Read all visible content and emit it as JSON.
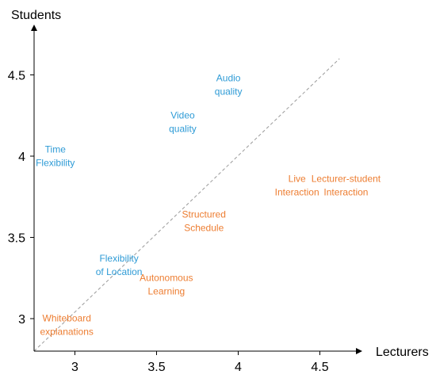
{
  "chart_data": {
    "type": "scatter",
    "title": "",
    "xlabel": "Lecturers",
    "ylabel": "Students",
    "xlim": [
      2.75,
      4.75
    ],
    "ylim": [
      2.8,
      4.8
    ],
    "x_ticks": [
      "3",
      "3.5",
      "4",
      "4.5"
    ],
    "y_ticks": [
      "3",
      "3.5",
      "4",
      "4.5"
    ],
    "grid": false,
    "reference_line": {
      "style": "dashed",
      "from": [
        2.75,
        2.8
      ],
      "from_label": "",
      "to": [
        4.62,
        4.6
      ]
    },
    "colors": {
      "blue": "#2e9bd6",
      "orange": "#ed7d31"
    },
    "points": [
      {
        "name": "Audio quality",
        "lines": [
          "Audio",
          "quality"
        ],
        "x": 3.94,
        "y": 4.44,
        "color": "#2e9bd6"
      },
      {
        "name": "Video quality",
        "lines": [
          "Video",
          "quality"
        ],
        "x": 3.66,
        "y": 4.21,
        "color": "#2e9bd6"
      },
      {
        "name": "Time Flexibility",
        "lines": [
          "Time",
          "Flexibility"
        ],
        "x": 2.88,
        "y": 4.0,
        "color": "#2e9bd6"
      },
      {
        "name": "Flexibility of Location",
        "lines": [
          "Flexibility",
          "of Location"
        ],
        "x": 3.27,
        "y": 3.33,
        "color": "#2e9bd6"
      },
      {
        "name": "Live Interaction",
        "lines": [
          "Live",
          "Interaction"
        ],
        "x": 4.36,
        "y": 3.82,
        "color": "#ed7d31"
      },
      {
        "name": "Lecturer-student Interaction",
        "lines": [
          "Lecturer-student",
          "Interaction"
        ],
        "x": 4.66,
        "y": 3.82,
        "color": "#ed7d31"
      },
      {
        "name": "Structured Schedule",
        "lines": [
          "Structured",
          "Schedule"
        ],
        "x": 3.79,
        "y": 3.6,
        "color": "#ed7d31"
      },
      {
        "name": "Autonomous Learning",
        "lines": [
          "Autonomous",
          "Learning"
        ],
        "x": 3.56,
        "y": 3.21,
        "color": "#ed7d31"
      },
      {
        "name": "Whiteboard explanations",
        "lines": [
          "Whiteboard",
          "explanations"
        ],
        "x": 2.95,
        "y": 2.96,
        "color": "#ed7d31"
      }
    ]
  }
}
